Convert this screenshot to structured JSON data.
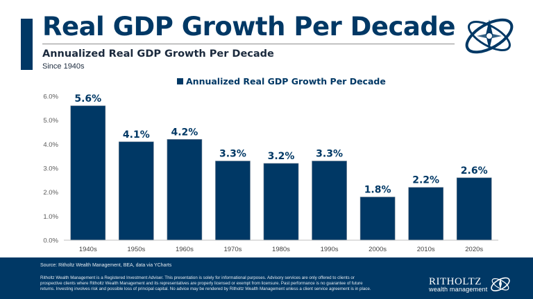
{
  "header": {
    "title": "Real GDP Growth Per Decade",
    "subtitle": "Annualized Real GDP Growth Per Decade",
    "since": "Since 1940s",
    "logo_icon": "compass-orbit-logo-icon"
  },
  "legend": {
    "label": "Annualized Real GDP Growth Per Decade",
    "color": "#003865"
  },
  "chart_data": {
    "type": "bar",
    "title": "",
    "xlabel": "",
    "ylabel": "",
    "categories": [
      "1940s",
      "1950s",
      "1960s",
      "1970s",
      "1980s",
      "1990s",
      "2000s",
      "2010s",
      "2020s"
    ],
    "series": [
      {
        "name": "Annualized Real GDP Growth Per Decade",
        "values": [
          5.6,
          4.1,
          4.2,
          3.3,
          3.2,
          3.3,
          1.8,
          2.2,
          2.6
        ]
      }
    ],
    "data_labels": [
      "5.6%",
      "4.1%",
      "4.2%",
      "3.3%",
      "3.2%",
      "3.3%",
      "1.8%",
      "2.2%",
      "2.6%"
    ],
    "ylim": [
      0,
      6
    ],
    "yticks": [
      0,
      1,
      2,
      3,
      4,
      5,
      6
    ],
    "ytick_labels": [
      "0.0%",
      "1.0%",
      "2.0%",
      "3.0%",
      "4.0%",
      "5.0%",
      "6.0%"
    ],
    "grid": false,
    "legend_position": "top-center",
    "bar_color": "#003865",
    "label_color": "#003865",
    "axis_color": "#bfbfbf"
  },
  "footer": {
    "source": "Source: Ritholtz Wealth Management, BEA, data via YCharts",
    "disclaimer": "Ritholtz Wealth Management is a Registered Investment Adviser. This presentation is solely for informational purposes. Advisory services are only offered to clients or prospective clients where Ritholtz Wealth Management and its representatives are properly licensed or exempt from licensure. Past performance is no guarantee of future returns. Investing involves risk and possible loss of principal capital. No advice may be rendered by Ritholtz Wealth Management unless a client service agreement is in place.",
    "brand_name": "RITHOLTZ",
    "brand_sub": "wealth management",
    "background": "#003865"
  }
}
